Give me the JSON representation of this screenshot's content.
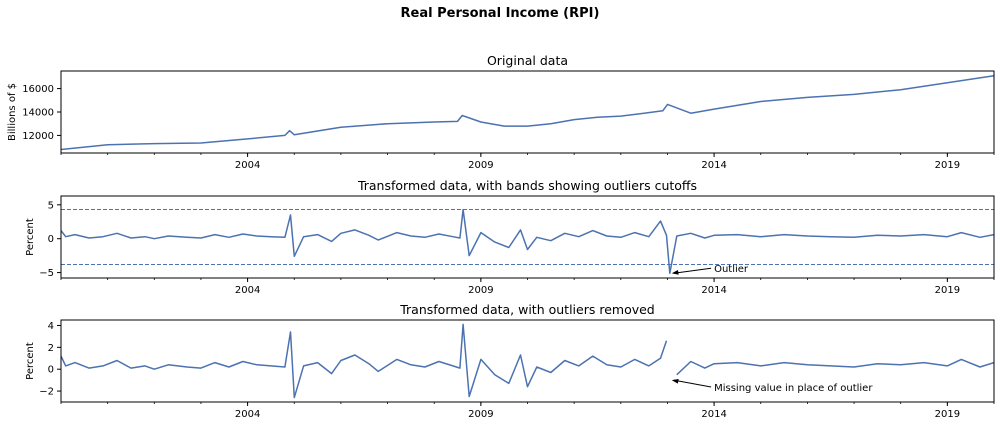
{
  "figure": {
    "title": "Real Personal Income (RPI)"
  },
  "style": {
    "line_color": "#4c72b0",
    "axis_color": "#000000",
    "background": "#ffffff"
  },
  "chart_data": [
    {
      "type": "line",
      "title": "Original data",
      "ylabel": "Billions of $",
      "xlim": [
        2000.0,
        2020.0
      ],
      "ylim": [
        10500,
        17500
      ],
      "xticks": [
        2004,
        2009,
        2014,
        2019
      ],
      "xtick_labels": [
        "2004",
        "2009",
        "2014",
        "2019"
      ],
      "yticks": [
        12000,
        14000,
        16000
      ],
      "ytick_labels": [
        "12000",
        "14000",
        "16000"
      ],
      "series": [
        {
          "x": [
            2000.0,
            2001.0,
            2002.0,
            2003.0,
            2004.0,
            2004.8,
            2004.9,
            2005.0,
            2006.0,
            2007.0,
            2008.0,
            2008.5,
            2008.6,
            2009.0,
            2009.5,
            2010.0,
            2010.5,
            2011.0,
            2011.5,
            2012.0,
            2012.5,
            2012.9,
            2013.0,
            2013.5,
            2014.0,
            2015.0,
            2016.0,
            2017.0,
            2018.0,
            2019.0,
            2020.0
          ],
          "y": [
            10800,
            11200,
            11300,
            11350,
            11700,
            12000,
            12400,
            12050,
            12700,
            13000,
            13150,
            13200,
            13700,
            13150,
            12800,
            12800,
            13000,
            13350,
            13550,
            13650,
            13900,
            14100,
            14650,
            13900,
            14250,
            14900,
            15250,
            15500,
            15900,
            16500,
            17100
          ]
        }
      ]
    },
    {
      "type": "line",
      "title": "Transformed data, with bands showing outliers cutoffs",
      "ylabel": "Percent",
      "xlim": [
        2000.0,
        2020.0
      ],
      "ylim": [
        -5.8,
        6.3
      ],
      "xticks": [
        2004,
        2009,
        2014,
        2019
      ],
      "xtick_labels": [
        "2004",
        "2009",
        "2014",
        "2019"
      ],
      "yticks": [
        -5,
        0,
        5
      ],
      "ytick_labels": [
        "−5",
        "0",
        "5"
      ],
      "bands": [
        4.3,
        -3.8
      ],
      "series": [
        {
          "x": [
            2000.0,
            2000.1,
            2000.3,
            2000.6,
            2000.9,
            2001.2,
            2001.5,
            2001.8,
            2002.0,
            2002.3,
            2002.7,
            2003.0,
            2003.3,
            2003.6,
            2003.9,
            2004.2,
            2004.5,
            2004.8,
            2004.92,
            2005.0,
            2005.2,
            2005.5,
            2005.8,
            2006.0,
            2006.3,
            2006.6,
            2006.8,
            2007.2,
            2007.5,
            2007.8,
            2008.1,
            2008.4,
            2008.55,
            2008.62,
            2008.75,
            2009.0,
            2009.3,
            2009.6,
            2009.85,
            2010.0,
            2010.2,
            2010.5,
            2010.8,
            2011.1,
            2011.4,
            2011.7,
            2012.0,
            2012.3,
            2012.6,
            2012.85,
            2012.98,
            2013.05,
            2013.2,
            2013.5,
            2013.8,
            2014.0,
            2014.5,
            2015.0,
            2015.5,
            2016.0,
            2016.5,
            2017.0,
            2017.5,
            2018.0,
            2018.5,
            2019.0,
            2019.3,
            2019.7,
            2020.0
          ],
          "y": [
            1.2,
            0.3,
            0.6,
            0.1,
            0.3,
            0.8,
            0.1,
            0.3,
            0.0,
            0.4,
            0.2,
            0.1,
            0.6,
            0.2,
            0.7,
            0.4,
            0.3,
            0.2,
            3.5,
            -2.6,
            0.3,
            0.6,
            -0.4,
            0.8,
            1.3,
            0.5,
            -0.2,
            0.9,
            0.4,
            0.2,
            0.7,
            0.3,
            0.1,
            4.3,
            -2.5,
            0.9,
            -0.5,
            -1.3,
            1.3,
            -1.6,
            0.2,
            -0.3,
            0.8,
            0.3,
            1.2,
            0.4,
            0.2,
            0.9,
            0.3,
            2.6,
            0.5,
            -5.1,
            0.4,
            0.8,
            0.1,
            0.5,
            0.6,
            0.3,
            0.6,
            0.4,
            0.3,
            0.2,
            0.5,
            0.4,
            0.6,
            0.3,
            0.9,
            0.2,
            0.6
          ]
        }
      ],
      "annotations": [
        {
          "text": "Outlier",
          "x": 2013.05,
          "y": -5.1,
          "text_x": 2014.0,
          "text_y": -4.8
        }
      ]
    },
    {
      "type": "line",
      "title": "Transformed data, with outliers removed",
      "ylabel": "Percent",
      "xlim": [
        2000.0,
        2020.0
      ],
      "ylim": [
        -3.0,
        4.5
      ],
      "xticks": [
        2004,
        2009,
        2014,
        2019
      ],
      "xtick_labels": [
        "2004",
        "2009",
        "2014",
        "2019"
      ],
      "yticks": [
        -2,
        0,
        2,
        4
      ],
      "ytick_labels": [
        "−2",
        "0",
        "2",
        "4"
      ],
      "series": [
        {
          "x": [
            2000.0,
            2000.1,
            2000.3,
            2000.6,
            2000.9,
            2001.2,
            2001.5,
            2001.8,
            2002.0,
            2002.3,
            2002.7,
            2003.0,
            2003.3,
            2003.6,
            2003.9,
            2004.2,
            2004.5,
            2004.8,
            2004.92,
            2005.0,
            2005.2,
            2005.5,
            2005.8,
            2006.0,
            2006.3,
            2006.6,
            2006.8,
            2007.2,
            2007.5,
            2007.8,
            2008.1,
            2008.4,
            2008.55,
            2008.62,
            2008.75,
            2009.0,
            2009.3,
            2009.6,
            2009.85,
            2010.0,
            2010.2,
            2010.5,
            2010.8,
            2011.1,
            2011.4,
            2011.7,
            2012.0,
            2012.3,
            2012.6,
            2012.85,
            2012.98,
            null,
            2013.2,
            2013.5,
            2013.8,
            2014.0,
            2014.5,
            2015.0,
            2015.5,
            2016.0,
            2016.5,
            2017.0,
            2017.5,
            2018.0,
            2018.5,
            2019.0,
            2019.3,
            2019.7,
            2020.0
          ],
          "y": [
            1.2,
            0.3,
            0.6,
            0.1,
            0.3,
            0.8,
            0.1,
            0.3,
            0.0,
            0.4,
            0.2,
            0.1,
            0.6,
            0.2,
            0.7,
            0.4,
            0.3,
            0.2,
            3.4,
            -2.6,
            0.3,
            0.6,
            -0.4,
            0.8,
            1.3,
            0.5,
            -0.2,
            0.9,
            0.4,
            0.2,
            0.7,
            0.3,
            0.1,
            4.1,
            -2.5,
            0.9,
            -0.5,
            -1.3,
            1.3,
            -1.6,
            0.2,
            -0.3,
            0.8,
            0.3,
            1.2,
            0.4,
            0.2,
            0.9,
            0.3,
            1.0,
            2.6,
            null,
            -0.5,
            0.7,
            0.1,
            0.5,
            0.6,
            0.3,
            0.6,
            0.4,
            0.3,
            0.2,
            0.5,
            0.4,
            0.6,
            0.3,
            0.9,
            0.2,
            0.6
          ]
        }
      ],
      "annotations": [
        {
          "text": "Missing value in place of outlier",
          "x": 2013.05,
          "y": -1.0,
          "text_x": 2014.0,
          "text_y": -1.9
        }
      ]
    }
  ]
}
